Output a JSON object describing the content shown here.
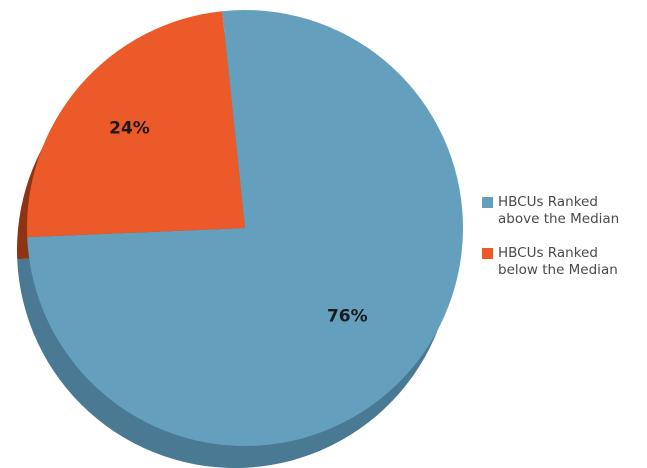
{
  "chart_data": {
    "type": "pie",
    "title": "",
    "style": "3d",
    "slices": [
      {
        "label": "HBCUs Ranked above the Median",
        "value": 76,
        "value_label": "76%",
        "color": "#64a0bd",
        "side_color": "#4a7a93"
      },
      {
        "label": "HBCUs Ranked below the Median",
        "value": 24,
        "value_label": "24%",
        "color": "#eb5a28",
        "side_color": "#8f3412"
      }
    ],
    "legend": {
      "position": "right",
      "items": [
        {
          "line1": "HBCUs Ranked",
          "line2": "above the Median",
          "color": "#64a0bd"
        },
        {
          "line1": "HBCUs Ranked",
          "line2": "below the Median",
          "color": "#eb5a28"
        }
      ]
    }
  }
}
